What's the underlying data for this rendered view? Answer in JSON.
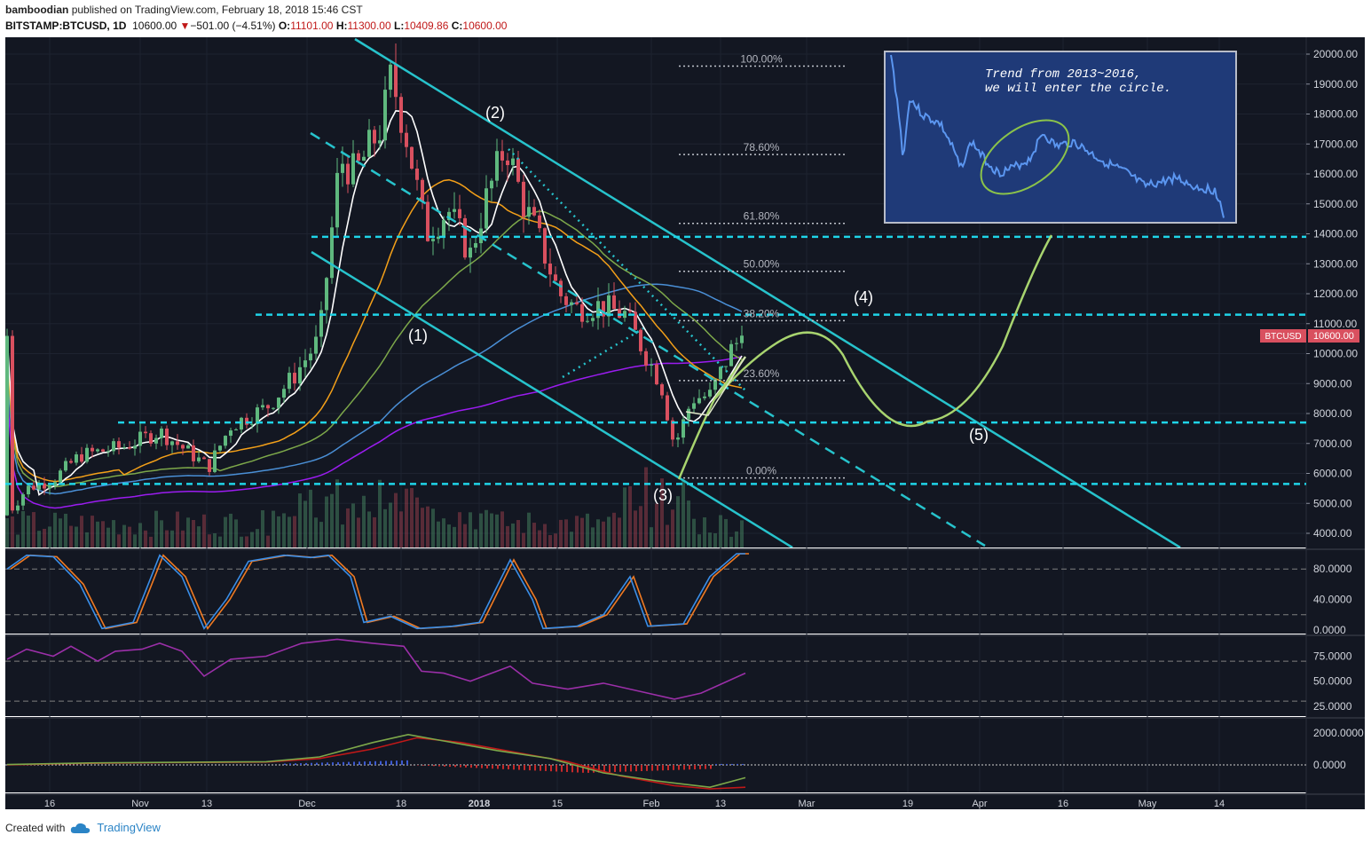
{
  "header": {
    "author": "bamboodian",
    "published_text": "published on TradingView.com, February 18, 2018 15:46 CST",
    "symbol": "BITSTAMP:BTCUSD, 1D",
    "last": "10600.00",
    "change_arrow": "▼",
    "change": "−501.00 (−4.51%)",
    "o_label": "O:",
    "o_value": "11101.00",
    "h_label": "H:",
    "h_value": "11300.00",
    "l_label": "L:",
    "l_value": "10409.86",
    "c_label": "C:",
    "c_value": "10600.00"
  },
  "footer": {
    "created_with": "Created with",
    "brand": "TradingView"
  },
  "colors": {
    "background": "#131722",
    "grid": "#1e2330",
    "up": "#5fb87e",
    "down": "#d9505f",
    "channel": "#27c3cc",
    "level": "#1fd4e8",
    "projection": "#a8d46f",
    "ma_white": "#ffffff",
    "ma_orange": "#f4a019",
    "ma_green": "#7da84a",
    "ma_blue": "#4a8fd6",
    "ma_purple": "#9b1cf0",
    "stoch_k": "#3a8ee8",
    "stoch_d": "#f07a22",
    "rsi": "#9b2fa8",
    "macd": "#7da84a",
    "signal": "#c01818",
    "price_tag": "#d9505f"
  },
  "chart_data": {
    "type": "candlestick",
    "symbol": "BITSTAMP:BTCUSD",
    "interval": "1D",
    "y_axis": {
      "range": [
        3500,
        20500
      ],
      "ticks": [
        "4000.00",
        "5000.00",
        "6000.00",
        "7000.00",
        "8000.00",
        "9000.00",
        "10000.00",
        "11000.00",
        "12000.00",
        "13000.00",
        "14000.00",
        "15000.00",
        "16000.00",
        "17000.00",
        "18000.00",
        "19000.00",
        "20000.00"
      ]
    },
    "x_axis": {
      "ticks": [
        "16",
        "Nov",
        "13",
        "Dec",
        "18",
        "2018",
        "15",
        "Feb",
        "13",
        "Mar",
        "19",
        "Apr",
        "16",
        "May",
        "14"
      ]
    },
    "price_label": {
      "symbol": "BTCUSD",
      "value": "10600.00"
    },
    "approx_closes": [
      {
        "x": "2017-10-10",
        "y": 4800
      },
      {
        "x": "2017-10-20",
        "y": 5700
      },
      {
        "x": "2017-11-01",
        "y": 6700
      },
      {
        "x": "2017-11-08",
        "y": 7300
      },
      {
        "x": "2017-11-12",
        "y": 5900
      },
      {
        "x": "2017-11-20",
        "y": 8100
      },
      {
        "x": "2017-11-29",
        "y": 9900
      },
      {
        "x": "2017-12-07",
        "y": 16500
      },
      {
        "x": "2017-12-17",
        "y": 19300
      },
      {
        "x": "2017-12-22",
        "y": 13800
      },
      {
        "x": "2018-01-06",
        "y": 17100
      },
      {
        "x": "2018-01-16",
        "y": 11300
      },
      {
        "x": "2018-01-28",
        "y": 11700
      },
      {
        "x": "2018-02-06",
        "y": 6900
      },
      {
        "x": "2018-02-17",
        "y": 11100
      },
      {
        "x": "2018-02-18",
        "y": 10600
      }
    ],
    "fib_levels": [
      {
        "label": "100.00%",
        "price": 19600
      },
      {
        "label": "78.60%",
        "price": 16650
      },
      {
        "label": "61.80%",
        "price": 14350
      },
      {
        "label": "50.00%",
        "price": 12750
      },
      {
        "label": "38.20%",
        "price": 11100
      },
      {
        "label": "23.60%",
        "price": 9100
      },
      {
        "label": "0.00%",
        "price": 5850
      }
    ],
    "horizontal_levels": [
      13900,
      11300,
      7700,
      5650
    ],
    "wave_labels": [
      "(1)",
      "(2)",
      "(3)",
      "(4)",
      "(5)"
    ],
    "inset": {
      "line1": "Trend from 2013~2016,",
      "line2": "we will enter the circle."
    },
    "stochastic": {
      "ticks": [
        "80.0000",
        "40.0000",
        "0.0000"
      ],
      "range": [
        0,
        100
      ]
    },
    "rsi": {
      "ticks": [
        "75.0000",
        "50.0000",
        "25.0000"
      ],
      "range": [
        15,
        95
      ],
      "last": 58
    },
    "macd": {
      "ticks": [
        "2000.0000",
        "0.0000"
      ]
    }
  }
}
